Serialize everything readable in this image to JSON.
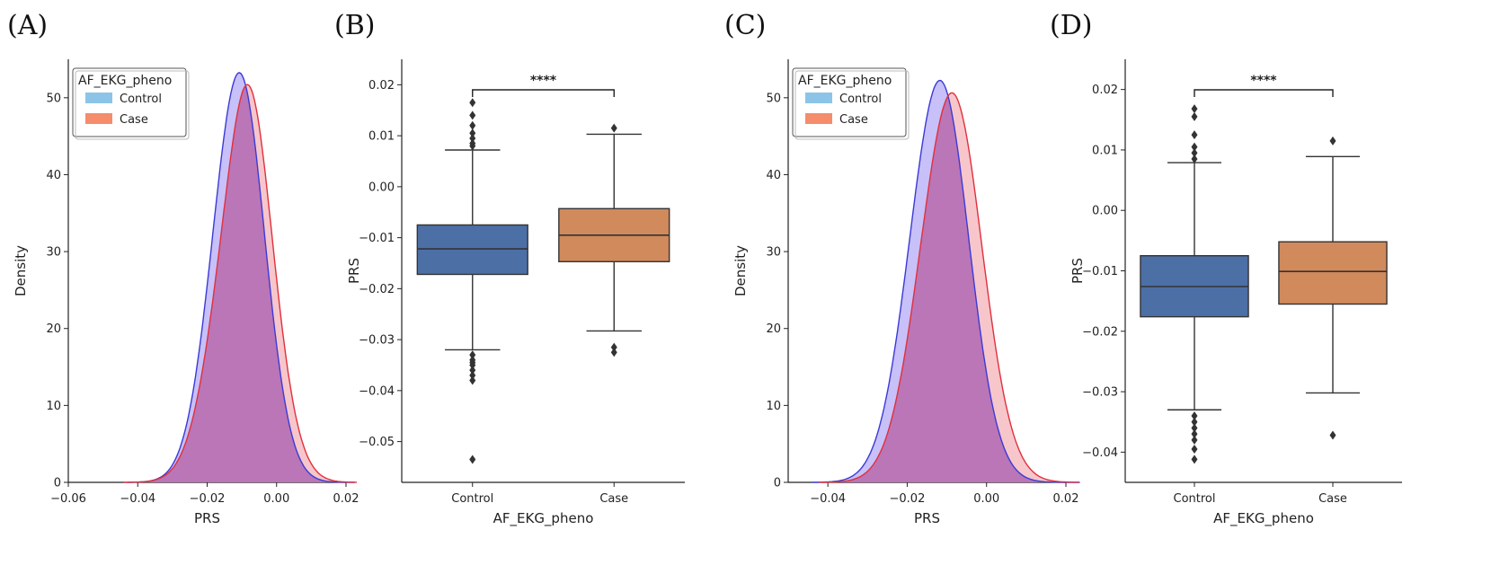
{
  "colors": {
    "control_line": "#3a3ad8",
    "control_fill": "#9b8cf2",
    "case_line": "#e0303c",
    "case_fill": "#f0a0a8",
    "overlap_fill": "#b36cb4",
    "legend_control_patch": "#8cc4e8",
    "legend_case_patch": "#f58c6c",
    "box_control": "#4c6fa6",
    "box_case": "#d08a5c"
  },
  "chart_data": [
    {
      "panel_label": "(A)",
      "type": "area",
      "xlabel": "PRS",
      "ylabel": "Density",
      "xlim": [
        -0.06,
        0.02
      ],
      "ylim": [
        0,
        55
      ],
      "xticks": [
        "−0.06",
        "−0.04",
        "−0.02",
        "0.00",
        "0.02"
      ],
      "yticks": [
        "0",
        "10",
        "20",
        "30",
        "40",
        "50"
      ],
      "legend": {
        "title": "AF_EKG_pheno",
        "entries": [
          "Control",
          "Case"
        ],
        "position": "upper-left"
      },
      "series": [
        {
          "name": "Control",
          "mean": -0.0115,
          "sd": 0.0075,
          "peak": 53,
          "skew": 0.1
        },
        {
          "name": "Case",
          "mean": -0.0105,
          "sd": 0.008,
          "peak": 49.7,
          "skew": 0.3
        }
      ]
    },
    {
      "panel_label": "(B)",
      "type": "box",
      "xlabel": "AF_EKG_pheno",
      "ylabel": "PRS",
      "ylim": [
        -0.058,
        0.025
      ],
      "yticks": [
        "0.02",
        "0.01",
        "0.00",
        "−0.01",
        "−0.02",
        "−0.03",
        "−0.04",
        "−0.05"
      ],
      "categories": [
        "Control",
        "Case"
      ],
      "significance": "****",
      "boxes": [
        {
          "name": "Control",
          "whisker_low": -0.032,
          "q1": -0.0172,
          "median": -0.0122,
          "q3": -0.0075,
          "whisker_high": 0.0072,
          "outliers": [
            0.0165,
            0.014,
            0.012,
            0.0105,
            0.0095,
            0.0085,
            0.008,
            -0.033,
            -0.034,
            -0.0345,
            -0.035,
            -0.036,
            -0.037,
            -0.038,
            -0.0535
          ]
        },
        {
          "name": "Case",
          "whisker_low": -0.0283,
          "q1": -0.0147,
          "median": -0.0095,
          "q3": -0.0043,
          "whisker_high": 0.0103,
          "outliers": [
            0.0115,
            -0.0315,
            -0.0325
          ]
        }
      ]
    },
    {
      "panel_label": "(C)",
      "type": "area",
      "xlabel": "PRS",
      "ylabel": "Density",
      "xlim": [
        -0.05,
        0.02
      ],
      "ylim": [
        0,
        55
      ],
      "xticks": [
        "−0.04",
        "−0.02",
        "0.00",
        "0.02"
      ],
      "yticks": [
        "0",
        "10",
        "20",
        "30",
        "40",
        "50"
      ],
      "legend": {
        "title": "AF_EKG_pheno",
        "entries": [
          "Control",
          "Case"
        ],
        "position": "upper-left"
      },
      "series": [
        {
          "name": "Control",
          "mean": -0.0125,
          "sd": 0.0075,
          "peak": 52,
          "skew": 0.1
        },
        {
          "name": "Case",
          "mean": -0.0095,
          "sd": 0.0078,
          "peak": 50.4,
          "skew": 0.1
        }
      ]
    },
    {
      "panel_label": "(D)",
      "type": "box",
      "xlabel": "AF_EKG_pheno",
      "ylabel": "PRS",
      "ylim": [
        -0.045,
        0.025
      ],
      "yticks": [
        "0.02",
        "0.01",
        "0.00",
        "−0.01",
        "−0.02",
        "−0.03",
        "−0.04"
      ],
      "categories": [
        "Control",
        "Case"
      ],
      "significance": "****",
      "boxes": [
        {
          "name": "Control",
          "whisker_low": -0.033,
          "q1": -0.0176,
          "median": -0.0126,
          "q3": -0.0075,
          "whisker_high": 0.0079,
          "outliers": [
            0.0168,
            0.0155,
            0.0125,
            0.0105,
            0.0095,
            0.0085,
            -0.034,
            -0.035,
            -0.036,
            -0.037,
            -0.038,
            -0.0395,
            -0.0412
          ]
        },
        {
          "name": "Case",
          "whisker_low": -0.0302,
          "q1": -0.0155,
          "median": -0.0101,
          "q3": -0.0052,
          "whisker_high": 0.0089,
          "outliers": [
            0.0115,
            -0.0372
          ]
        }
      ]
    }
  ]
}
